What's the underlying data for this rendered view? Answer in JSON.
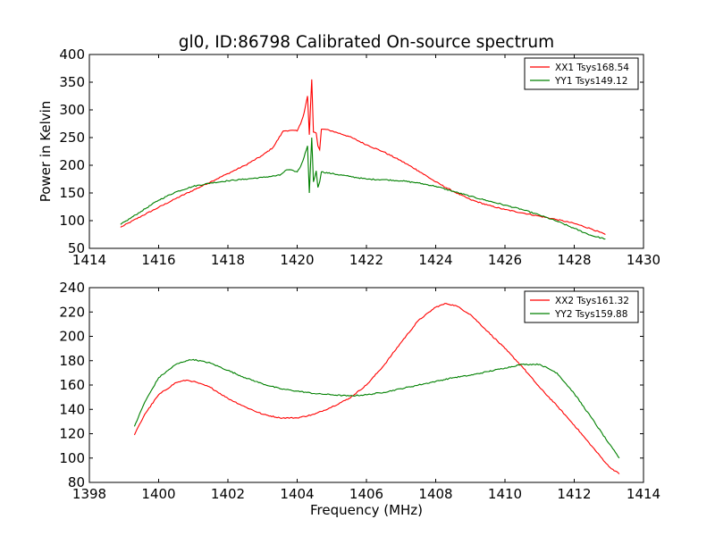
{
  "title": "gl0, ID:86798 Calibrated On-source spectrum",
  "chart_data": [
    {
      "type": "line",
      "title": "gl0, ID:86798 Calibrated On-source spectrum",
      "xlabel": "",
      "ylabel": "Power in Kelvin",
      "xlim": [
        1414,
        1430
      ],
      "ylim": [
        50,
        400
      ],
      "xticks": [
        1414,
        1416,
        1418,
        1420,
        1422,
        1424,
        1426,
        1428,
        1430
      ],
      "yticks": [
        50,
        100,
        150,
        200,
        250,
        300,
        350,
        400
      ],
      "grid": false,
      "legend_position": "top-right",
      "series": [
        {
          "name": "XX1 Tsys168.54",
          "color": "#ff0000",
          "x": [
            1414.9,
            1415.5,
            1416.0,
            1416.5,
            1417.0,
            1417.5,
            1418.0,
            1418.5,
            1419.0,
            1419.3,
            1419.6,
            1419.8,
            1420.0,
            1420.1,
            1420.2,
            1420.3,
            1420.35,
            1420.42,
            1420.47,
            1420.55,
            1420.6,
            1420.65,
            1420.7,
            1420.8,
            1421.0,
            1421.5,
            1422.0,
            1422.5,
            1423.0,
            1423.5,
            1424.0,
            1424.5,
            1425.0,
            1425.5,
            1426.0,
            1426.5,
            1427.0,
            1427.5,
            1428.0,
            1428.5,
            1428.9
          ],
          "values": [
            88,
            108,
            124,
            140,
            155,
            170,
            185,
            200,
            218,
            232,
            262,
            263,
            262,
            275,
            295,
            325,
            255,
            355,
            260,
            258,
            235,
            228,
            265,
            265,
            262,
            252,
            237,
            224,
            208,
            190,
            170,
            153,
            138,
            128,
            120,
            114,
            108,
            102,
            95,
            85,
            75
          ]
        },
        {
          "name": "YY1 Tsys149.12",
          "color": "#008000",
          "x": [
            1414.9,
            1415.5,
            1416.0,
            1416.5,
            1417.0,
            1417.5,
            1418.0,
            1418.5,
            1419.0,
            1419.5,
            1419.7,
            1419.9,
            1420.0,
            1420.1,
            1420.2,
            1420.3,
            1420.35,
            1420.42,
            1420.47,
            1420.55,
            1420.6,
            1420.65,
            1420.7,
            1421.0,
            1421.5,
            1422.0,
            1422.5,
            1423.0,
            1423.5,
            1424.0,
            1424.5,
            1425.0,
            1425.5,
            1426.0,
            1426.5,
            1427.0,
            1427.5,
            1428.0,
            1428.5,
            1428.9
          ],
          "values": [
            93,
            117,
            137,
            152,
            162,
            168,
            172,
            175,
            178,
            182,
            192,
            190,
            188,
            198,
            215,
            235,
            150,
            250,
            170,
            190,
            160,
            170,
            188,
            185,
            180,
            175,
            174,
            172,
            168,
            162,
            153,
            144,
            136,
            128,
            120,
            110,
            99,
            86,
            73,
            67
          ]
        }
      ]
    },
    {
      "type": "line",
      "title": "",
      "xlabel": "Frequency (MHz)",
      "ylabel": "",
      "xlim": [
        1398,
        1414
      ],
      "ylim": [
        80,
        240
      ],
      "xticks": [
        1398,
        1400,
        1402,
        1404,
        1406,
        1408,
        1410,
        1412,
        1414
      ],
      "yticks": [
        80,
        100,
        120,
        140,
        160,
        180,
        200,
        220,
        240
      ],
      "grid": false,
      "legend_position": "top-right",
      "series": [
        {
          "name": "XX2 Tsys161.32",
          "color": "#ff0000",
          "x": [
            1399.3,
            1399.6,
            1400.0,
            1400.5,
            1400.8,
            1401.0,
            1401.5,
            1402.0,
            1402.5,
            1403.0,
            1403.5,
            1404.0,
            1404.5,
            1405.0,
            1405.5,
            1406.0,
            1406.5,
            1407.0,
            1407.5,
            1408.0,
            1408.3,
            1408.6,
            1409.0,
            1409.5,
            1410.0,
            1410.5,
            1411.0,
            1411.5,
            1412.0,
            1412.5,
            1413.0,
            1413.3
          ],
          "values": [
            119,
            136,
            152,
            162,
            164,
            163,
            158,
            149,
            142,
            136,
            133,
            133,
            136,
            142,
            149,
            160,
            176,
            195,
            213,
            224,
            227,
            225,
            218,
            204,
            190,
            175,
            158,
            143,
            127,
            110,
            93,
            87
          ]
        },
        {
          "name": "YY2 Tsys159.88",
          "color": "#008000",
          "x": [
            1399.3,
            1399.6,
            1400.0,
            1400.5,
            1400.8,
            1401.0,
            1401.5,
            1402.0,
            1402.5,
            1403.0,
            1403.5,
            1404.0,
            1404.5,
            1405.0,
            1405.5,
            1406.0,
            1406.5,
            1407.0,
            1407.5,
            1408.0,
            1408.5,
            1409.0,
            1409.5,
            1410.0,
            1410.5,
            1411.0,
            1411.5,
            1412.0,
            1412.5,
            1413.0,
            1413.3
          ],
          "values": [
            126,
            146,
            166,
            177,
            180,
            181,
            178,
            172,
            166,
            161,
            157,
            155,
            153,
            152,
            151,
            152,
            154,
            157,
            160,
            163,
            166,
            168,
            171,
            174,
            177,
            177,
            170,
            153,
            133,
            112,
            100
          ]
        }
      ]
    }
  ]
}
